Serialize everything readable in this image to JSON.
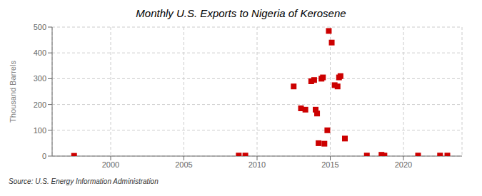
{
  "chart_data": {
    "type": "scatter",
    "title": "Monthly U.S. Exports to Nigeria of Kerosene",
    "y_label": "Thousand Barrels",
    "source": "Source: U.S. Energy Information Administration",
    "x": [
      1997.5,
      2008.75,
      2009.2,
      2012.5,
      2013.0,
      2013.3,
      2013.7,
      2013.9,
      2014.0,
      2014.1,
      2014.2,
      2014.4,
      2014.5,
      2014.6,
      2014.8,
      2014.9,
      2015.1,
      2015.3,
      2015.5,
      2015.6,
      2015.7,
      2016.0,
      2017.5,
      2018.5,
      2018.7,
      2021.0,
      2022.5,
      2023.0
    ],
    "values": [
      1,
      2,
      2,
      270,
      185,
      180,
      290,
      295,
      180,
      165,
      50,
      300,
      305,
      48,
      100,
      485,
      440,
      275,
      270,
      305,
      310,
      68,
      2,
      5,
      2,
      2,
      2,
      2
    ],
    "color": "#cc0000",
    "marker": "square",
    "xlim": [
      1996,
      2024
    ],
    "xticks": [
      2000,
      2005,
      2010,
      2015,
      2020
    ],
    "ylim": [
      0,
      500
    ],
    "yticks": [
      0,
      100,
      200,
      300,
      400,
      500
    ],
    "grid": true
  }
}
